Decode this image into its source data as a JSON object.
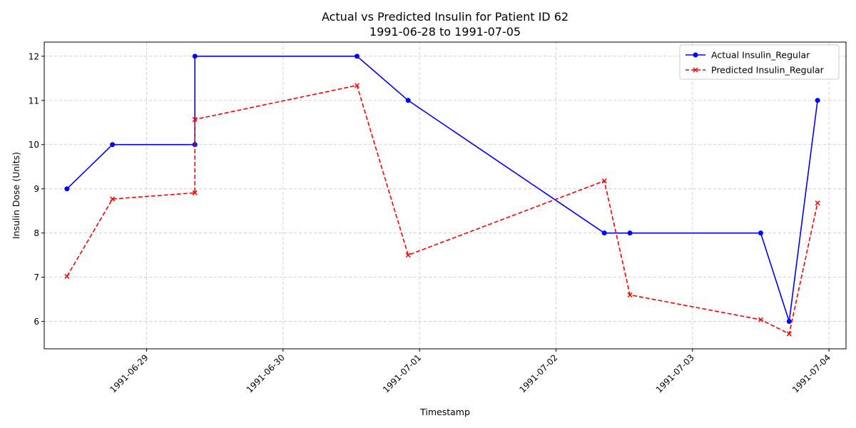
{
  "chart_data": {
    "type": "line",
    "title": "Actual vs Predicted Insulin for Patient ID 62",
    "subtitle": "1991-06-28 to 1991-07-05",
    "xlabel": "Timestamp",
    "ylabel": "Insulin Dose (Units)",
    "x_range": [
      "1991-06-28T06:00",
      "1991-07-04T03:00"
    ],
    "ylim": [
      5.38,
      12.32
    ],
    "y_ticks": [
      6,
      7,
      8,
      9,
      10,
      11,
      12
    ],
    "x_ticks": [
      "1991-06-29",
      "1991-06-30",
      "1991-07-01",
      "1991-07-02",
      "1991-07-03",
      "1991-07-04"
    ],
    "grid": true,
    "legend_position": "top-right",
    "colors": {
      "actual": "#0000ff",
      "predicted": "#ff0000"
    },
    "series": [
      {
        "name": "Actual Insulin_Regular",
        "style": "solid",
        "marker": "circle",
        "x": [
          "1991-06-28T10:00",
          "1991-06-28T18:00",
          "1991-06-29T08:30",
          "1991-06-29T08:30",
          "1991-06-30T13:00",
          "1991-06-30T22:00",
          "1991-07-02T08:30",
          "1991-07-02T13:00",
          "1991-07-03T12:00",
          "1991-07-03T17:00",
          "1991-07-03T22:00"
        ],
        "values": [
          9,
          10,
          10,
          12,
          12,
          11,
          8,
          8,
          8,
          6,
          11
        ]
      },
      {
        "name": "Predicted Insulin_Regular",
        "style": "dashed",
        "marker": "x",
        "x": [
          "1991-06-28T10:00",
          "1991-06-28T18:00",
          "1991-06-29T08:30",
          "1991-06-29T08:30",
          "1991-06-30T13:00",
          "1991-06-30T22:00",
          "1991-07-02T08:30",
          "1991-07-02T13:00",
          "1991-07-03T12:00",
          "1991-07-03T17:00",
          "1991-07-03T22:00"
        ],
        "values": [
          7.02,
          8.77,
          8.91,
          10.57,
          11.34,
          7.5,
          9.18,
          6.6,
          6.04,
          5.72,
          8.68
        ]
      }
    ]
  }
}
